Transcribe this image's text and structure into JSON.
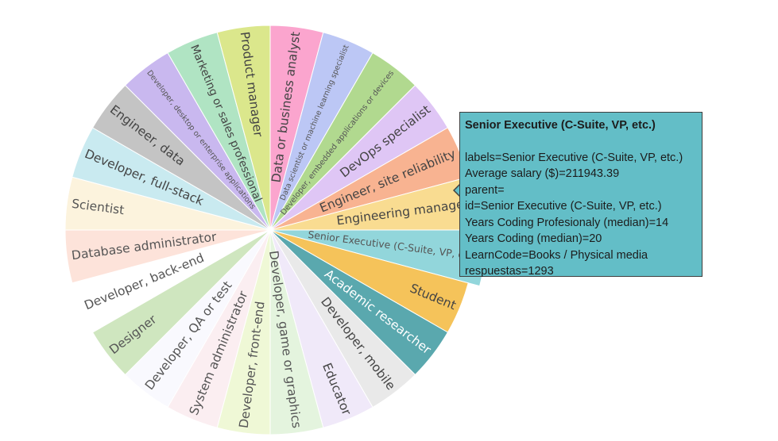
{
  "chart_data": {
    "type": "pie",
    "title": "",
    "categories": [
      "Senior Executive (C-Suite, VP, etc.)",
      "Student",
      "Academic researcher",
      "Developer, mobile",
      "Educator",
      "Developer, game or graphics",
      "Developer, front-end",
      "System administrator",
      "Developer, QA or test",
      "Designer",
      "Developer, back-end",
      "Database administrator",
      "Scientist",
      "Developer, full-stack",
      "Engineer, data",
      "Developer, desktop or enterprise applications",
      "Marketing or sales professional",
      "Product manager",
      "Data or business analyst",
      "Data scientist or machine learning specialist",
      "Developer, embedded applications or devices",
      "DevOps specialist",
      "Engineer, site reliability",
      "Engineering manager"
    ],
    "colors": [
      "#92d6db",
      "#f5c35a",
      "#5aa8ae",
      "#e9e9e9",
      "#f0e9f9",
      "#e4f4de",
      "#eff8d6",
      "#fbeef1",
      "#f9f9fe",
      "#cfe6bf",
      "#ffffff",
      "#fde3da",
      "#fcf3dd",
      "#c9eaf0",
      "#c4c4c4",
      "#c9b8ef",
      "#b0e4c3",
      "#dbe78c",
      "#fba5ce",
      "#bcc7f5",
      "#b1d98f",
      "#dfc6f5",
      "#f8b391",
      "#f9dc91"
    ],
    "label_colors": [
      "#555555",
      "#444444",
      "#ffffff",
      "#444444",
      "#444444",
      "#555555",
      "#555555",
      "#555555",
      "#555555",
      "#555555",
      "#555555",
      "#555555",
      "#555555",
      "#444444",
      "#444444",
      "#555555",
      "#444444",
      "#444444",
      "#444444",
      "#555555",
      "#555555",
      "#444444",
      "#444444",
      "#444444"
    ],
    "radii": [
      0.92,
      0.87,
      0.87,
      0.87,
      0.87,
      0.87,
      0.87,
      0.87,
      0.87,
      0.87,
      0.87,
      0.87,
      0.87,
      0.87,
      0.87,
      0.87,
      0.87,
      0.87,
      0.87,
      0.87,
      0.87,
      0.87,
      0.87,
      0.87
    ],
    "sort": false,
    "direction": "clockwise",
    "legend": "none"
  },
  "tooltip": {
    "title": "Senior Executive (C-Suite, VP, etc.)",
    "lines": [
      "labels=Senior Executive (C-Suite, VP, etc.)",
      "Average salary ($)=211943.39",
      "parent=",
      "id=Senior Executive (C-Suite, VP, etc.)",
      "Years Coding Profesionaly (median)=14",
      "Years Coding (median)=20",
      "LearnCode=Books / Physical media",
      "respuestas=1293"
    ]
  }
}
